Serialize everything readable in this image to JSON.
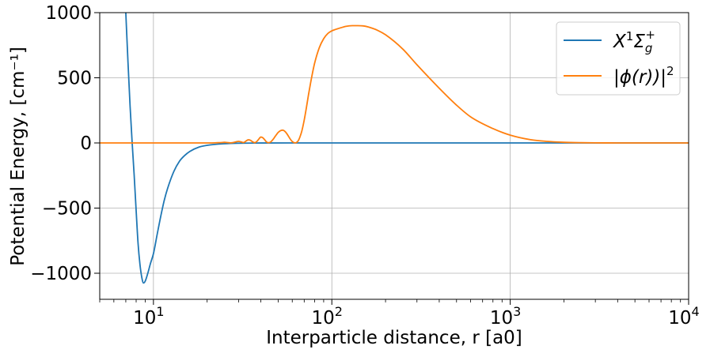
{
  "chart_data": {
    "type": "line",
    "xlabel": "Interparticle distance, r [a0]",
    "ylabel": "Potential Energy, [cm⁻¹]",
    "xscale": "log",
    "xlim": [
      5,
      10000
    ],
    "ylim": [
      -1200,
      1000
    ],
    "grid": true,
    "legend_position": "top-right",
    "xticks": [
      {
        "value": 10,
        "base": "10",
        "exp": "1"
      },
      {
        "value": 100,
        "base": "10",
        "exp": "2"
      },
      {
        "value": 1000,
        "base": "10",
        "exp": "3"
      },
      {
        "value": 10000,
        "base": "10",
        "exp": "4"
      }
    ],
    "yticks": [
      {
        "value": 1000,
        "label": "1000"
      },
      {
        "value": 500,
        "label": "500"
      },
      {
        "value": 0,
        "label": "0"
      },
      {
        "value": -500,
        "label": "−500"
      },
      {
        "value": -1000,
        "label": "−1000"
      }
    ],
    "series": [
      {
        "name": "X¹Σg⁺",
        "legend_parts": {
          "main": "X",
          "sup1": "1",
          "sigma": "Σ",
          "sub": "g",
          "sup2": "+"
        },
        "color": "#1f77b4",
        "x": [
          7.0,
          7.2,
          7.4,
          7.6,
          7.8,
          8.0,
          8.2,
          8.4,
          8.6,
          8.8,
          9.0,
          9.3,
          9.6,
          10.0,
          10.5,
          11.0,
          11.5,
          12.0,
          13.0,
          14.0,
          15.0,
          16.0,
          18.0,
          20.0,
          25.0,
          30.0,
          40.0,
          60.0,
          100.0,
          1000.0,
          10000.0
        ],
        "y": [
          1000,
          620,
          280,
          0,
          -250,
          -520,
          -770,
          -930,
          -1030,
          -1075,
          -1060,
          -1000,
          -930,
          -850,
          -700,
          -560,
          -440,
          -350,
          -220,
          -140,
          -95,
          -65,
          -32,
          -18,
          -6,
          -2,
          -0.5,
          0,
          0,
          0,
          0
        ]
      },
      {
        "name": "|ϕ(r))|²",
        "legend_parts": {
          "main": "|ϕ(r))|",
          "sup": "2"
        },
        "color": "#ff7f0e",
        "x": [
          5,
          20,
          22,
          23,
          24,
          25,
          26,
          27,
          28,
          29,
          30,
          31,
          32,
          33,
          34,
          35,
          36,
          37,
          38,
          39,
          40,
          41,
          42,
          43,
          44,
          45,
          46,
          47,
          48,
          49,
          50,
          51,
          52,
          53,
          54,
          55,
          56,
          57,
          58,
          59,
          60,
          61,
          62,
          63,
          64,
          65,
          66,
          67,
          68,
          70,
          72,
          74,
          76,
          78,
          80,
          85,
          90,
          95,
          100,
          110,
          120,
          130,
          140,
          150,
          160,
          180,
          200,
          250,
          300,
          400,
          500,
          600,
          800,
          1000,
          1300,
          1600,
          2000,
          2500,
          3000,
          4000,
          10000
        ],
        "y": [
          0,
          0,
          1,
          2,
          3,
          5,
          3,
          1,
          3,
          8,
          12,
          8,
          3,
          14,
          24,
          20,
          8,
          2,
          12,
          30,
          45,
          40,
          25,
          8,
          2,
          4,
          15,
          30,
          48,
          65,
          80,
          90,
          96,
          98,
          94,
          84,
          70,
          54,
          37,
          22,
          11,
          4,
          1,
          2,
          8,
          20,
          40,
          65,
          95,
          175,
          270,
          370,
          460,
          540,
          610,
          730,
          800,
          840,
          860,
          880,
          895,
          900,
          900,
          898,
          890,
          865,
          830,
          720,
          600,
          420,
          290,
          200,
          110,
          60,
          25,
          12,
          5,
          2,
          1,
          0,
          0
        ]
      }
    ]
  }
}
